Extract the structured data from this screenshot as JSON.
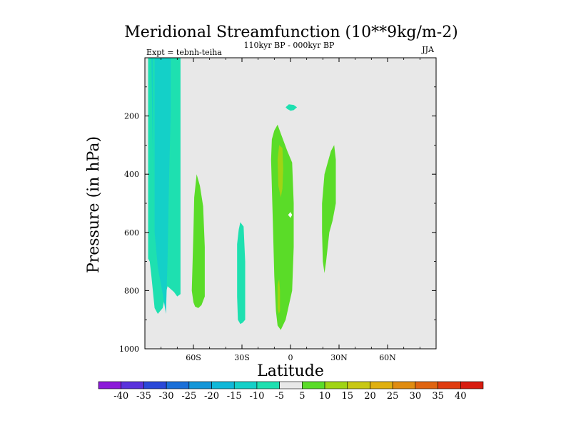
{
  "chart_data": {
    "type": "contour",
    "title": "Meridional Streamfunction (10**9kg/m-2)",
    "left_string": "Expt = tebnh-teiha",
    "center_string": "110kyr BP - 000kyr BP",
    "right_string": "JJA",
    "xlabel": "Latitude",
    "ylabel": "Pressure (in hPa)",
    "xlim": [
      -90,
      90
    ],
    "ylim": [
      1000,
      0
    ],
    "x_ticks": [
      {
        "value": -60,
        "label": "60S"
      },
      {
        "value": -30,
        "label": "30S"
      },
      {
        "value": 0,
        "label": "0"
      },
      {
        "value": 30,
        "label": "30N"
      },
      {
        "value": 60,
        "label": "60N"
      }
    ],
    "y_ticks": [
      {
        "value": 200,
        "label": "200"
      },
      {
        "value": 400,
        "label": "400"
      },
      {
        "value": 600,
        "label": "600"
      },
      {
        "value": 800,
        "label": "800"
      },
      {
        "value": 1000,
        "label": "1000"
      }
    ],
    "background_color": "#e8e8e8",
    "colorbar": {
      "levels": [
        "-40",
        "-35",
        "-30",
        "-25",
        "-20",
        "-15",
        "-10",
        "-5",
        "5",
        "10",
        "15",
        "20",
        "25",
        "30",
        "35",
        "40"
      ],
      "colors": [
        "#8c1ad9",
        "#5a32dc",
        "#2a48d8",
        "#1a6fd8",
        "#1496d8",
        "#10b8d8",
        "#14d0c8",
        "#1ee0b0",
        "#e8e8e8",
        "#5adc28",
        "#a0d414",
        "#c8c814",
        "#e0b010",
        "#e08c10",
        "#e06410",
        "#e03c10",
        "#d81c10"
      ]
    },
    "regions": [
      {
        "name": "sh-polar-negative",
        "value_range": "-10 to -5",
        "color": "#1ee0b0",
        "polygon": [
          [
            -88,
            0
          ],
          [
            -68,
            0
          ],
          [
            -68,
            812
          ],
          [
            -70,
            820
          ],
          [
            -72,
            805
          ],
          [
            -76,
            785
          ],
          [
            -79,
            860
          ],
          [
            -82,
            880
          ],
          [
            -84,
            860
          ],
          [
            -86,
            750
          ],
          [
            -87,
            700
          ],
          [
            -88,
            690
          ]
        ]
      },
      {
        "name": "sh-polar-core",
        "value_range": "-15 to -10",
        "color": "#14d0c8",
        "polygon": [
          [
            -86,
            0
          ],
          [
            -74,
            0
          ],
          [
            -74,
            180
          ],
          [
            -75,
            400
          ],
          [
            -76,
            700
          ],
          [
            -77,
            880
          ],
          [
            -79,
            810
          ],
          [
            -82,
            720
          ],
          [
            -84,
            600
          ],
          [
            -85,
            380
          ]
        ]
      },
      {
        "name": "sh-polar-strip",
        "value_range": "-10 to -5",
        "color": "#1ee0b0",
        "polygon": [
          [
            -85,
            0
          ],
          [
            -84,
            0
          ],
          [
            -84,
            740
          ],
          [
            -85,
            740
          ]
        ]
      },
      {
        "name": "midlat-south-positive",
        "value_range": "5 to 10",
        "color": "#5adc28",
        "polygon": [
          [
            -58,
            400
          ],
          [
            -56,
            440
          ],
          [
            -54,
            510
          ],
          [
            -53,
            650
          ],
          [
            -53,
            820
          ],
          [
            -55,
            850
          ],
          [
            -57,
            860
          ],
          [
            -59,
            855
          ],
          [
            -60,
            840
          ],
          [
            -61,
            800
          ],
          [
            -60,
            600
          ],
          [
            -59.5,
            480
          ]
        ]
      },
      {
        "name": "subtrop-south-negative",
        "value_range": "-10 to -5",
        "color": "#1ee0b0",
        "polygon": [
          [
            -31,
            565
          ],
          [
            -29,
            580
          ],
          [
            -28,
            700
          ],
          [
            -28,
            900
          ],
          [
            -29.5,
            910
          ],
          [
            -31,
            915
          ],
          [
            -32.5,
            900
          ],
          [
            -33,
            820
          ],
          [
            -33,
            640
          ],
          [
            -32,
            590
          ]
        ]
      },
      {
        "name": "upper-eq-negative",
        "value_range": "-10 to -5",
        "color": "#1ee0b0",
        "polygon": [
          [
            -3,
            170
          ],
          [
            -1,
            160
          ],
          [
            2,
            162
          ],
          [
            4,
            170
          ],
          [
            2,
            180
          ],
          [
            0,
            182
          ],
          [
            -2,
            176
          ]
        ]
      },
      {
        "name": "eq-positive",
        "value_range": "5 to 10",
        "color": "#5adc28",
        "polygon": [
          [
            -10,
            250
          ],
          [
            -8,
            230
          ],
          [
            -6,
            260
          ],
          [
            -4,
            290
          ],
          [
            -2,
            320
          ],
          [
            1,
            360
          ],
          [
            2,
            500
          ],
          [
            2,
            650
          ],
          [
            1,
            800
          ],
          [
            -3,
            900
          ],
          [
            -6,
            935
          ],
          [
            -8,
            920
          ],
          [
            -9,
            870
          ],
          [
            -10,
            750
          ],
          [
            -11,
            550
          ],
          [
            -12,
            350
          ],
          [
            -11.5,
            280
          ]
        ]
      },
      {
        "name": "eq-upper-core",
        "value_range": "10 to 15",
        "color": "#a0d414",
        "polygon": [
          [
            -7,
            300
          ],
          [
            -5,
            310
          ],
          [
            -4.5,
            380
          ],
          [
            -5,
            450
          ],
          [
            -6,
            480
          ],
          [
            -7.5,
            440
          ],
          [
            -8,
            350
          ]
        ]
      },
      {
        "name": "eq-lower-core",
        "value_range": "10 to 15",
        "color": "#a0d414",
        "polygon": [
          [
            -7,
            760
          ],
          [
            -6.5,
            800
          ],
          [
            -6.5,
            870
          ],
          [
            -7.2,
            880
          ],
          [
            -8,
            860
          ],
          [
            -8,
            780
          ]
        ]
      },
      {
        "name": "nh-subtrop-positive",
        "value_range": "5 to 10",
        "color": "#5adc28",
        "polygon": [
          [
            27,
            300
          ],
          [
            28,
            350
          ],
          [
            28,
            500
          ],
          [
            26,
            560
          ],
          [
            24,
            600
          ],
          [
            22,
            700
          ],
          [
            21,
            740
          ],
          [
            20,
            700
          ],
          [
            19.5,
            600
          ],
          [
            19.5,
            500
          ],
          [
            21,
            400
          ],
          [
            23,
            360
          ],
          [
            25,
            320
          ]
        ]
      },
      {
        "name": "missing-spot",
        "value_range": "missing",
        "color": "#ffffff",
        "polygon": [
          [
            -1.5,
            540
          ],
          [
            0,
            530
          ],
          [
            1,
            540
          ],
          [
            0,
            550
          ]
        ]
      }
    ]
  }
}
